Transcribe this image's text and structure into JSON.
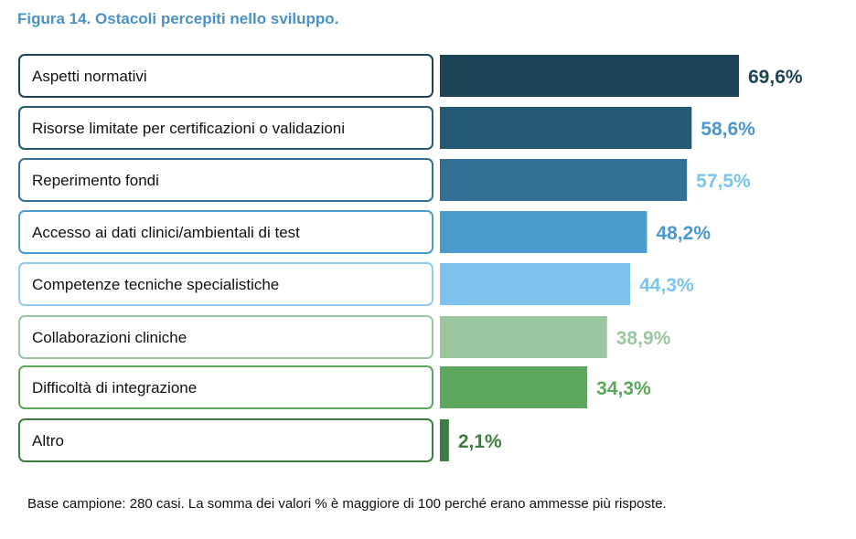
{
  "figure": {
    "title": "Figura 14. Ostacoli percepiti nello sviluppo.",
    "footnote": "Base campione: 280 casi. La somma dei valori % è maggiore di 100 perché erano ammesse più risposte."
  },
  "chart_data": {
    "type": "bar",
    "orientation": "horizontal",
    "title": "",
    "xlabel": "",
    "ylabel": "",
    "unit": "%",
    "xlim": [
      0,
      69.6
    ],
    "grid": false,
    "legend": "none",
    "categories": [
      "Aspetti normativi",
      "Risorse limitate per certificazioni o validazioni",
      "Reperimento fondi",
      "Accesso ai dati clinici/ambientali di test",
      "Competenze tecniche specialistiche",
      "Collaborazioni cliniche",
      "Difficoltà di integrazione",
      "Altro"
    ],
    "values": [
      69.6,
      58.6,
      57.5,
      48.2,
      44.3,
      38.9,
      34.3,
      2.1
    ],
    "value_labels": [
      "69,6%",
      "58,6%",
      "57,5%",
      "48,2%",
      "44,3%",
      "38,9%",
      "34,3%",
      "2,1%"
    ],
    "bar_colors": [
      "#1d4357",
      "#245a73",
      "#346f96",
      "#4a9ccf",
      "#7cc3ee",
      "#9bc7a0",
      "#5aa75d",
      "#3e7d40"
    ],
    "label_colors": [
      "#1d4357",
      "#4a97cf",
      "#7cc3ee",
      "#4a97cf",
      "#7cc3ee",
      "#9bc7a0",
      "#5aa75d",
      "#3e7d40"
    ],
    "box_border_colors": [
      "#1d4357",
      "#245a73",
      "#346f96",
      "#4a9ccf",
      "#8fcbee",
      "#9bc7a0",
      "#5aa75d",
      "#3e7d40"
    ]
  }
}
